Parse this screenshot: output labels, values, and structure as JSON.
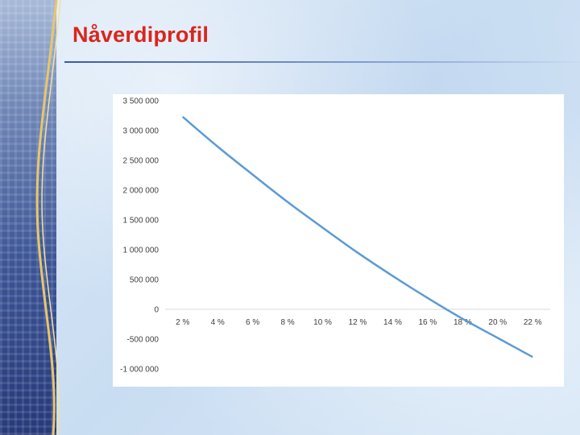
{
  "slide": {
    "title": "Nåverdiprofil"
  },
  "chart_data": {
    "type": "line",
    "title": "",
    "xlabel": "",
    "ylabel": "",
    "categories": [
      "2 %",
      "4 %",
      "6 %",
      "8 %",
      "10 %",
      "12 %",
      "14 %",
      "16 %",
      "18 %",
      "20 %",
      "22 %"
    ],
    "series": [
      {
        "values": [
          3230000,
          2730000,
          2260000,
          1800000,
          1370000,
          950000,
          560000,
          190000,
          -160000,
          -480000,
          -800000
        ]
      }
    ],
    "ylim": [
      -1000000,
      3500000
    ],
    "yticks": [
      3500000,
      3000000,
      2500000,
      2000000,
      1500000,
      1000000,
      500000,
      0,
      -500000,
      -1000000
    ],
    "ytick_labels": [
      "3 500 000",
      "3 000 000",
      "2 500 000",
      "2 000 000",
      "1 500 000",
      "1 000 000",
      "500 000",
      "0",
      "-500 000",
      "-1 000 000"
    ],
    "grid": false,
    "legend": "none",
    "line_color": "#5b9bd5",
    "axis_color": "#d9d9d9"
  }
}
